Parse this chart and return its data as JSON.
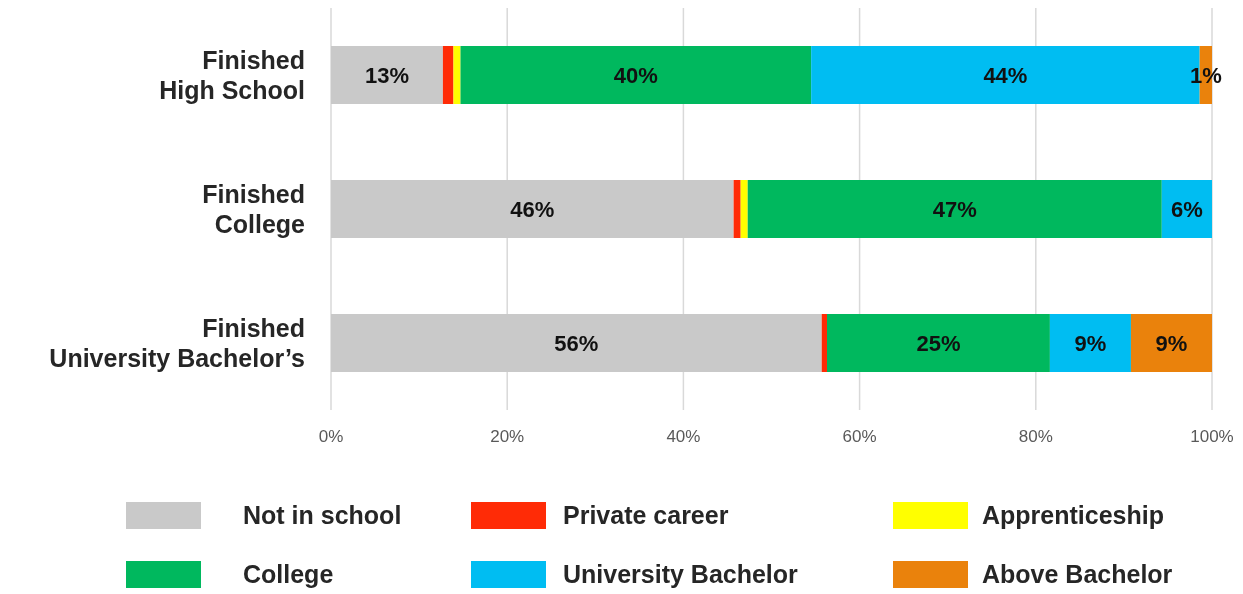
{
  "chart_data": {
    "type": "bar",
    "orientation": "horizontal",
    "stacked": true,
    "categories": [
      "Finished High School",
      "Finished College",
      "Finished University Bachelor’s"
    ],
    "series": [
      {
        "name": "Not in school",
        "color": "#c9c9c9",
        "values": [
          12.7,
          45.7,
          55.7
        ],
        "value_labels": [
          "13%",
          "46%",
          "56%"
        ]
      },
      {
        "name": "Private career",
        "color": "#ff2b06",
        "values": [
          1.2,
          0.8,
          0.6
        ]
      },
      {
        "name": "Apprenticeship",
        "color": "#ffff00",
        "values": [
          0.8,
          0.8,
          null
        ]
      },
      {
        "name": "College",
        "color": "#00b85e",
        "values": [
          39.8,
          47.0,
          25.3
        ],
        "value_labels": [
          "40%",
          "47%",
          "25%"
        ]
      },
      {
        "name": "University Bachelor",
        "color": "#00bdf2",
        "values": [
          44.1,
          5.7,
          9.2
        ],
        "value_labels": [
          "44%",
          "6%",
          "9%"
        ]
      },
      {
        "name": "Above Bachelor",
        "color": "#ea820c",
        "values": [
          1.4,
          null,
          9.2
        ],
        "value_labels": [
          "1%",
          null,
          "9%"
        ]
      }
    ],
    "xlim": [
      0,
      100
    ],
    "xticks": [
      {
        "value": 0,
        "label": "0%"
      },
      {
        "value": 20,
        "label": "20%"
      },
      {
        "value": 40,
        "label": "40%"
      },
      {
        "value": 60,
        "label": "60%"
      },
      {
        "value": 80,
        "label": "80%"
      },
      {
        "value": 100,
        "label": "100%"
      }
    ],
    "grid": "x",
    "legend": "bottom"
  }
}
